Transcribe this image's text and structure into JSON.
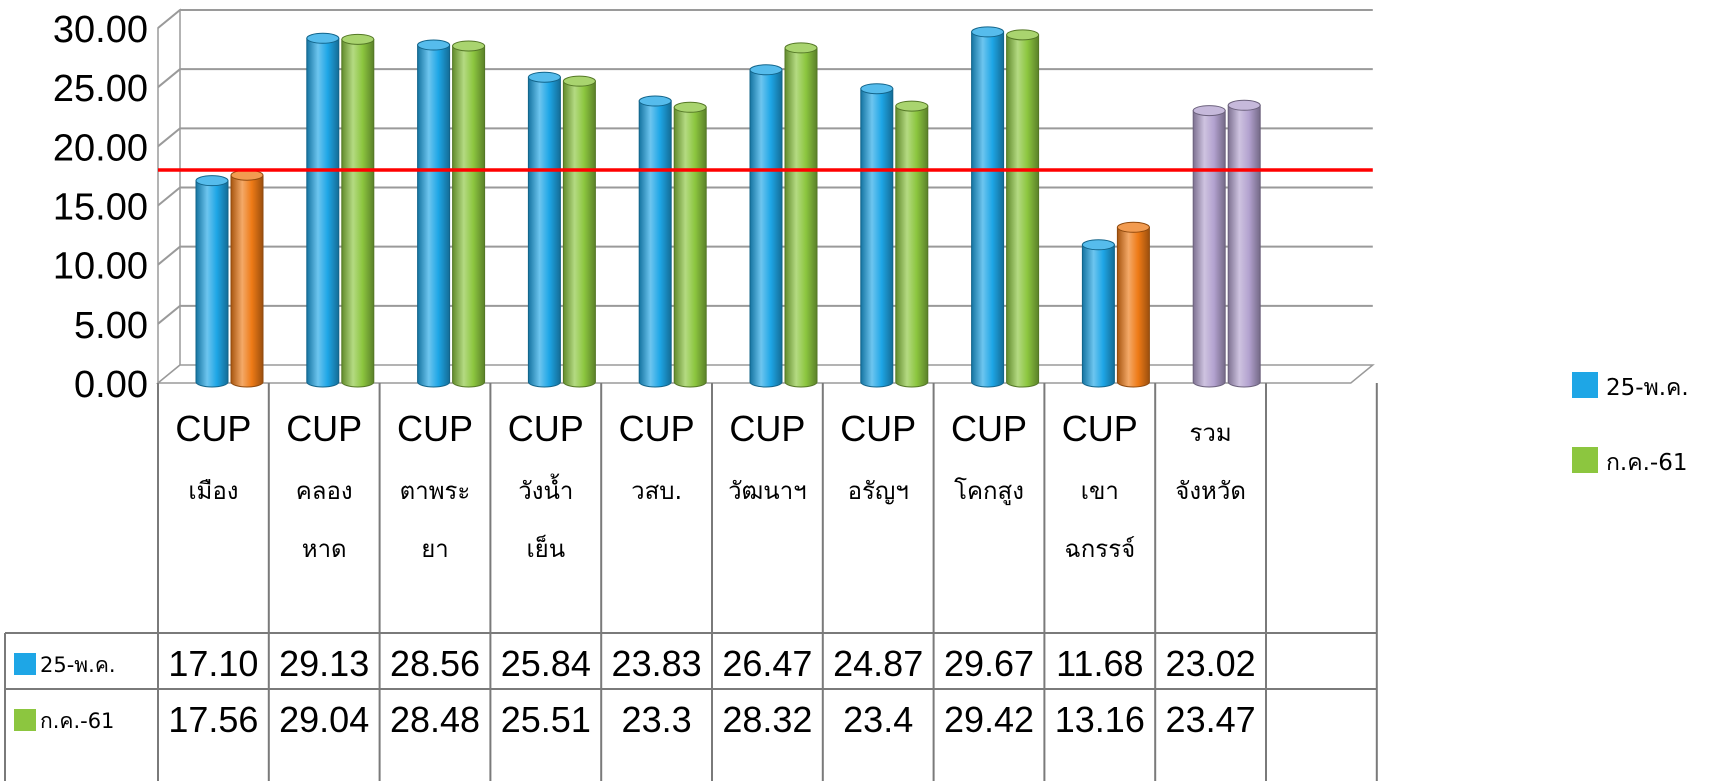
{
  "chart_data": {
    "type": "bar",
    "ylim": [
      0,
      30
    ],
    "y_ticks": [
      "0.00",
      "5.00",
      "10.00",
      "15.00",
      "20.00",
      "25.00",
      "30.00"
    ],
    "target_line": 18,
    "grid": true,
    "legend_position": "right",
    "categories": [
      [
        "CUP",
        "เมือง"
      ],
      [
        "CUP",
        "คลอง",
        "หาด"
      ],
      [
        "CUP",
        "ตาพระ",
        "ยา"
      ],
      [
        "CUP",
        "วังน้ำ",
        "เย็น"
      ],
      [
        "CUP",
        "วสบ."
      ],
      [
        "CUP",
        "วัฒนาฯ"
      ],
      [
        "CUP",
        "อรัญฯ"
      ],
      [
        "CUP",
        "โคกสูง"
      ],
      [
        "CUP",
        "เขา",
        "ฉกรรจ์"
      ],
      [
        "รวม",
        "จังหวัด"
      ]
    ],
    "series": [
      {
        "name": "25-พ.ค.",
        "color": "#1ea6e6",
        "values": [
          17.1,
          29.13,
          28.56,
          25.84,
          23.83,
          26.47,
          24.87,
          29.67,
          11.68,
          23.02
        ],
        "labels": [
          "17.10",
          "29.13",
          "28.56",
          "25.84",
          "23.83",
          "26.47",
          "24.87",
          "29.67",
          "11.68",
          "23.02"
        ]
      },
      {
        "name": "ก.ค.-61",
        "color": "#8cc63f",
        "values": [
          17.56,
          29.04,
          28.48,
          25.51,
          23.3,
          28.32,
          23.4,
          29.42,
          13.16,
          23.47
        ],
        "labels": [
          "17.56",
          "29.04",
          "28.48",
          "25.51",
          "23.3",
          "28.32",
          "23.4",
          "29.42",
          "13.16",
          "23.47"
        ]
      }
    ],
    "colors": {
      "below_target": "#ee7a16",
      "province_total": "#b3a2cf",
      "target_line": "#ff0000",
      "grid": "#9a9a9a"
    }
  }
}
